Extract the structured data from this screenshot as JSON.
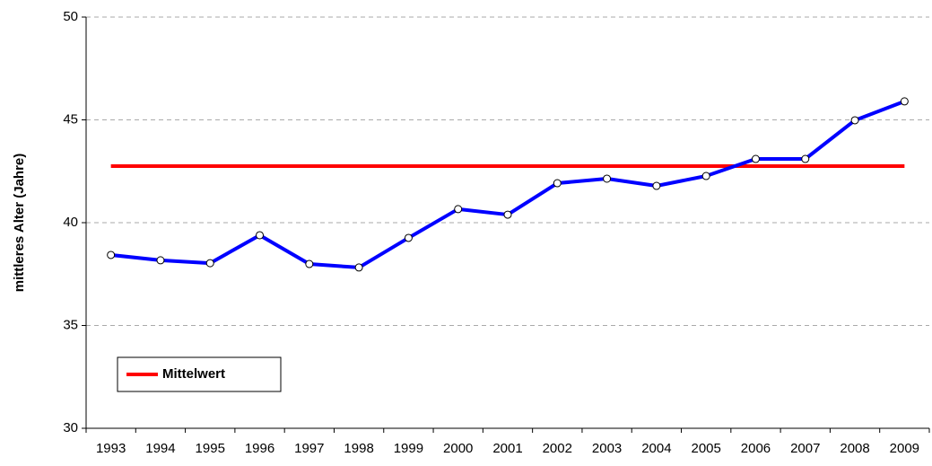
{
  "chart_data": {
    "type": "line",
    "y_label": "mittleres Alter (Jahre)",
    "categories": [
      "1993",
      "1994",
      "1995",
      "1996",
      "1997",
      "1998",
      "1999",
      "2000",
      "2001",
      "2002",
      "2003",
      "2004",
      "2005",
      "2006",
      "2007",
      "2008",
      "2009"
    ],
    "series": [
      {
        "color": "#0000ff",
        "markers": true,
        "values": [
          38.43,
          38.17,
          38.03,
          39.39,
          37.99,
          37.82,
          39.26,
          40.66,
          40.39,
          41.92,
          42.14,
          41.79,
          42.27,
          43.1,
          43.1,
          44.98,
          45.9
        ]
      },
      {
        "name": "Mittelwert",
        "color": "#ff0000",
        "markers": false,
        "values": [
          42.75,
          42.75,
          42.75,
          42.75,
          42.75,
          42.75,
          42.75,
          42.75,
          42.75,
          42.75,
          42.75,
          42.75,
          42.75,
          42.75,
          42.75,
          42.75,
          42.75
        ]
      }
    ],
    "ylim": [
      30,
      50
    ],
    "yticks": [
      30,
      35,
      40,
      45,
      50
    ],
    "grid": true,
    "legend": "lower left"
  }
}
